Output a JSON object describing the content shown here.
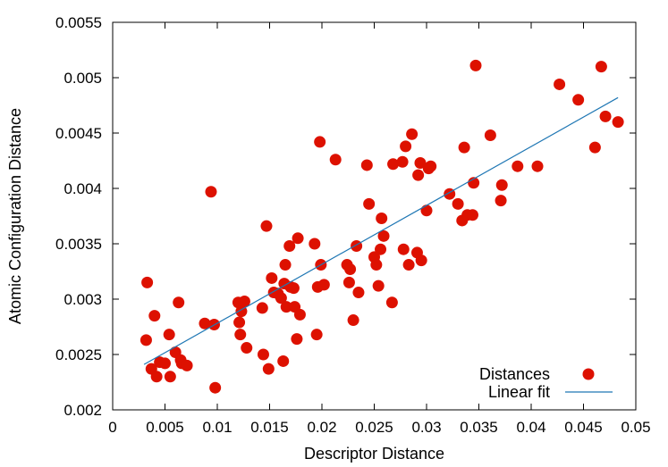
{
  "chart_data": {
    "type": "scatter",
    "xlabel": "Descriptor Distance",
    "ylabel": "Atomic Configuration Distance",
    "xlim": [
      0,
      0.05
    ],
    "ylim": [
      0.002,
      0.0055
    ],
    "xticks": [
      0,
      0.005,
      0.01,
      0.015,
      0.02,
      0.025,
      0.03,
      0.035,
      0.04,
      0.045,
      0.05
    ],
    "xtick_labels": [
      "0",
      "0.005",
      "0.01",
      "0.015",
      "0.02",
      "0.025",
      "0.03",
      "0.035",
      "0.04",
      "0.045",
      "0.05"
    ],
    "yticks": [
      0.002,
      0.0025,
      0.003,
      0.0035,
      0.004,
      0.0045,
      0.005,
      0.0055
    ],
    "ytick_labels": [
      "0.002",
      "0.0025",
      "0.003",
      "0.0035",
      "0.004",
      "0.0045",
      "0.005",
      "0.0055"
    ],
    "legend_position": "bottom-right",
    "colors": {
      "points": "#dd1100",
      "fit": "#1f77b4"
    },
    "series": [
      {
        "name": "Distances",
        "kind": "scatter",
        "points": [
          [
            0.0032,
            0.00263
          ],
          [
            0.0033,
            0.00315
          ],
          [
            0.0037,
            0.00237
          ],
          [
            0.004,
            0.00285
          ],
          [
            0.0042,
            0.0023
          ],
          [
            0.0045,
            0.00243
          ],
          [
            0.005,
            0.00242
          ],
          [
            0.0054,
            0.00268
          ],
          [
            0.0055,
            0.0023
          ],
          [
            0.006,
            0.00252
          ],
          [
            0.0063,
            0.00297
          ],
          [
            0.0065,
            0.00245
          ],
          [
            0.0066,
            0.00242
          ],
          [
            0.0071,
            0.0024
          ],
          [
            0.0088,
            0.00278
          ],
          [
            0.0094,
            0.00397
          ],
          [
            0.0097,
            0.00277
          ],
          [
            0.0098,
            0.0022
          ],
          [
            0.012,
            0.00297
          ],
          [
            0.0121,
            0.00279
          ],
          [
            0.0122,
            0.00268
          ],
          [
            0.0123,
            0.00289
          ],
          [
            0.0126,
            0.00298
          ],
          [
            0.0128,
            0.00256
          ],
          [
            0.0143,
            0.00292
          ],
          [
            0.0144,
            0.0025
          ],
          [
            0.0147,
            0.00366
          ],
          [
            0.0149,
            0.00237
          ],
          [
            0.0152,
            0.00319
          ],
          [
            0.0154,
            0.00306
          ],
          [
            0.0158,
            0.00305
          ],
          [
            0.0161,
            0.00301
          ],
          [
            0.0163,
            0.00244
          ],
          [
            0.0164,
            0.00314
          ],
          [
            0.0165,
            0.00331
          ],
          [
            0.0166,
            0.00293
          ],
          [
            0.0169,
            0.00348
          ],
          [
            0.017,
            0.00311
          ],
          [
            0.0173,
            0.0031
          ],
          [
            0.0174,
            0.00293
          ],
          [
            0.0176,
            0.00264
          ],
          [
            0.0177,
            0.00355
          ],
          [
            0.0179,
            0.00286
          ],
          [
            0.0193,
            0.0035
          ],
          [
            0.0195,
            0.00268
          ],
          [
            0.0196,
            0.00311
          ],
          [
            0.0198,
            0.00442
          ],
          [
            0.0199,
            0.00331
          ],
          [
            0.0202,
            0.00313
          ],
          [
            0.0213,
            0.00426
          ],
          [
            0.0224,
            0.00331
          ],
          [
            0.0226,
            0.00315
          ],
          [
            0.0227,
            0.00327
          ],
          [
            0.023,
            0.00281
          ],
          [
            0.0233,
            0.00348
          ],
          [
            0.0235,
            0.00306
          ],
          [
            0.0243,
            0.00421
          ],
          [
            0.0245,
            0.00386
          ],
          [
            0.025,
            0.00338
          ],
          [
            0.0252,
            0.00331
          ],
          [
            0.0254,
            0.00312
          ],
          [
            0.0256,
            0.00345
          ],
          [
            0.0257,
            0.00373
          ],
          [
            0.0259,
            0.00357
          ],
          [
            0.0267,
            0.00297
          ],
          [
            0.0268,
            0.00422
          ],
          [
            0.0277,
            0.00424
          ],
          [
            0.0278,
            0.00345
          ],
          [
            0.028,
            0.00438
          ],
          [
            0.0283,
            0.00331
          ],
          [
            0.0286,
            0.00449
          ],
          [
            0.0291,
            0.00342
          ],
          [
            0.0292,
            0.00412
          ],
          [
            0.0294,
            0.00423
          ],
          [
            0.0295,
            0.00335
          ],
          [
            0.03,
            0.0038
          ],
          [
            0.0302,
            0.00418
          ],
          [
            0.0304,
            0.0042
          ],
          [
            0.0322,
            0.00395
          ],
          [
            0.033,
            0.00386
          ],
          [
            0.0334,
            0.00371
          ],
          [
            0.0336,
            0.00437
          ],
          [
            0.0339,
            0.00376
          ],
          [
            0.0344,
            0.00376
          ],
          [
            0.0345,
            0.00405
          ],
          [
            0.0347,
            0.00511
          ],
          [
            0.0361,
            0.00448
          ],
          [
            0.0371,
            0.00389
          ],
          [
            0.0372,
            0.00403
          ],
          [
            0.0387,
            0.0042
          ],
          [
            0.0406,
            0.0042
          ],
          [
            0.0427,
            0.00494
          ],
          [
            0.0445,
            0.0048
          ],
          [
            0.0461,
            0.00437
          ],
          [
            0.0467,
            0.0051
          ],
          [
            0.0471,
            0.00465
          ],
          [
            0.0483,
            0.0046
          ]
        ]
      },
      {
        "name": "Linear fit",
        "kind": "line",
        "points": [
          [
            0.003,
            0.00241
          ],
          [
            0.0483,
            0.00482
          ]
        ]
      }
    ]
  }
}
